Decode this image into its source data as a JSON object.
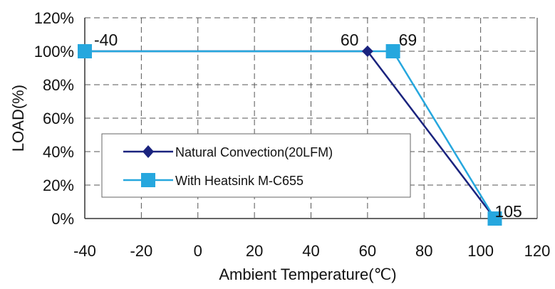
{
  "chart_data": {
    "type": "line",
    "title": "",
    "xlabel": "Ambient Temperature(℃)",
    "ylabel": "LOAD(%)",
    "xlim": [
      -40,
      120
    ],
    "ylim": [
      0,
      120
    ],
    "x_ticks": [
      -40,
      -20,
      0,
      20,
      40,
      60,
      80,
      100,
      120
    ],
    "y_ticks": [
      0,
      20,
      40,
      60,
      80,
      100,
      120
    ],
    "x_tick_labels": [
      "-40",
      "-20",
      "0",
      "20",
      "40",
      "60",
      "80",
      "100",
      "120"
    ],
    "y_tick_labels": [
      "0%",
      "20%",
      "40%",
      "60%",
      "80%",
      "100%",
      "120%"
    ],
    "grid": {
      "vertical": true,
      "horizontal": true,
      "style": "dashed"
    },
    "legend_position": "bottom-left",
    "series": [
      {
        "name": "Natural Convection(20LFM)",
        "color": "#1a237e",
        "marker": "diamond",
        "x": [
          -40,
          60,
          105
        ],
        "y": [
          100,
          100,
          0
        ]
      },
      {
        "name": "With Heatsink M-C655",
        "color": "#26a7de",
        "marker": "square",
        "x": [
          -40,
          69,
          105
        ],
        "y": [
          100,
          100,
          0
        ]
      }
    ],
    "annotations": [
      {
        "text": "-40",
        "x": -40,
        "y": 100
      },
      {
        "text": "60",
        "x": 60,
        "y": 100
      },
      {
        "text": "69",
        "x": 69,
        "y": 100
      },
      {
        "text": "105",
        "x": 105,
        "y": 0
      }
    ]
  }
}
